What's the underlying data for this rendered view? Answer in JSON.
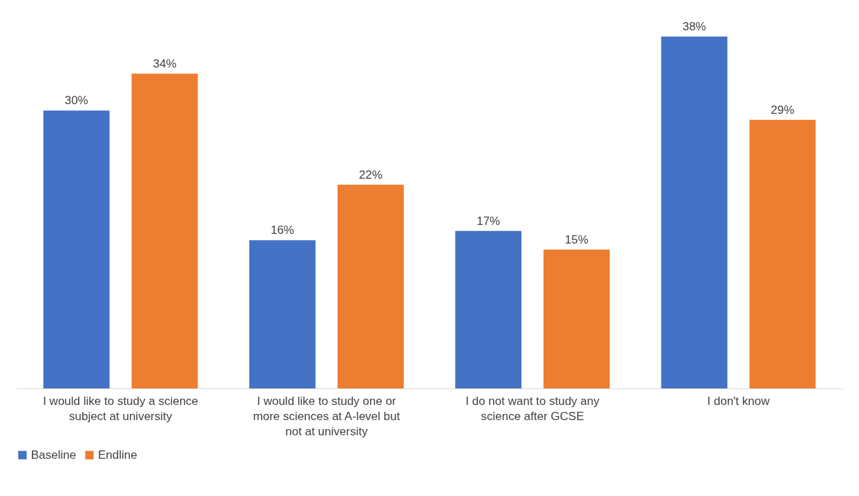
{
  "chart_data": {
    "type": "bar",
    "categories": [
      "I would like to study a science subject at university",
      "I would like to study one or more sciences at A-level but not at university",
      "I do not want to study any science after GCSE",
      "I don't know"
    ],
    "series": [
      {
        "name": "Baseline",
        "color": "#4472c4",
        "values": [
          30,
          16,
          17,
          38
        ],
        "value_labels": [
          "30%",
          "16%",
          "17%",
          "38%"
        ]
      },
      {
        "name": "Endline",
        "color": "#ed7d31",
        "values": [
          34,
          22,
          15,
          29
        ],
        "value_labels": [
          "34%",
          "22%",
          "15%",
          "29%"
        ]
      }
    ],
    "legend": "bottom"
  }
}
